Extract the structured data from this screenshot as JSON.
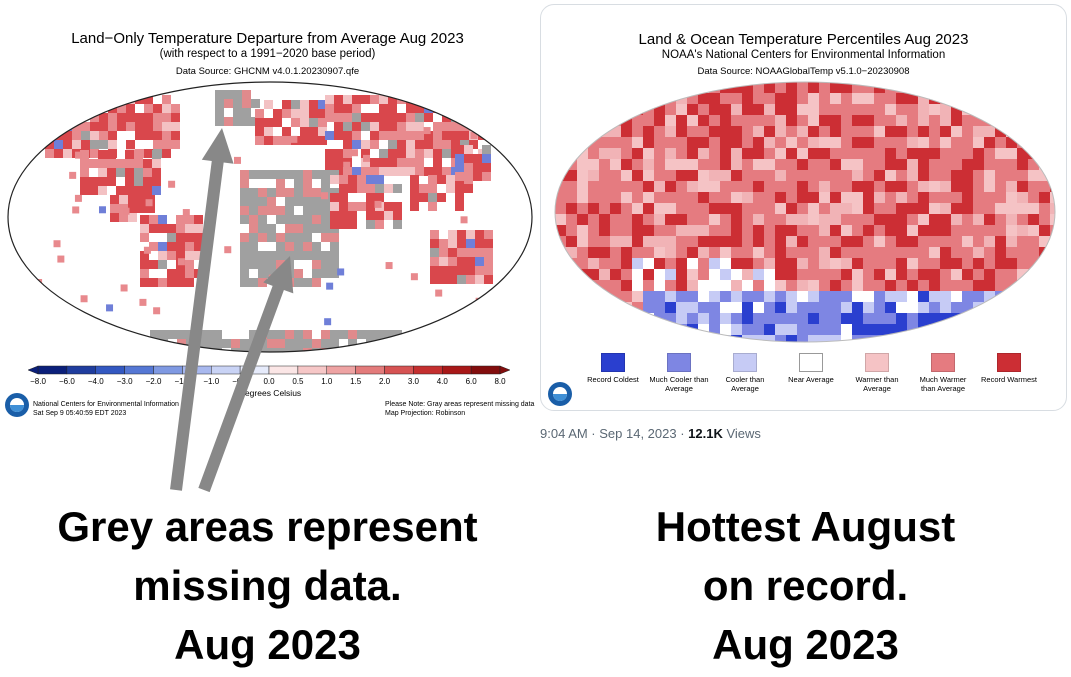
{
  "left_map": {
    "title": "Land−Only Temperature Departure from Average Aug 2023",
    "subtitle": "(with respect to a 1991−2020 base period)",
    "source": "Data Source: GHCNM v4.0.1.20230907.qfe",
    "colorbar_ticks": [
      "−8.0",
      "−6.0",
      "−4.0",
      "−3.0",
      "−2.0",
      "−1.5",
      "−1.0",
      "−0.5",
      "0.0",
      "0.5",
      "1.0",
      "1.5",
      "2.0",
      "3.0",
      "4.0",
      "6.0",
      "8.0"
    ],
    "colorbar_colors": [
      "#0b1f7a",
      "#1f3d9e",
      "#3358c1",
      "#5577d4",
      "#7f99e2",
      "#a8b8ee",
      "#c9d3f5",
      "#e6ebfb",
      "#fbe6e6",
      "#f6c7c7",
      "#eea3a3",
      "#e37b7b",
      "#d65353",
      "#c42f2f",
      "#a81818",
      "#820d0d"
    ],
    "colorbar_label": "Degrees Celsius",
    "footer_left": [
      "National Centers for Environmental Information",
      "Sat Sep  9 05:40:59 EDT 2023"
    ],
    "footer_right": [
      "Please Note: Gray areas represent missing data",
      "Map Projection: Robinson"
    ],
    "colors": {
      "missing": "#a0a0a0",
      "warm": "#d9474c",
      "cool": "#6f7fd8"
    }
  },
  "right_map": {
    "title": "Land & Ocean Temperature Percentiles Aug 2023",
    "subtitle": "NOAA's National Centers for Environmental Information",
    "source": "Data Source: NOAAGlobalTemp v5.1.0−20230908",
    "legend": [
      {
        "label": "Record Coldest",
        "color": "#2a3fcf"
      },
      {
        "label": "Much Cooler than Average",
        "color": "#7e86e3"
      },
      {
        "label": "Cooler than Average",
        "color": "#c6cbf5"
      },
      {
        "label": "Near Average",
        "color": "#ffffff"
      },
      {
        "label": "Warmer than Average",
        "color": "#f5c3c5"
      },
      {
        "label": "Much Warmer than Average",
        "color": "#e57b80"
      },
      {
        "label": "Record Warmest",
        "color": "#cc2e34"
      }
    ]
  },
  "tweet": {
    "time": "9:04 AM · Sep 14, 2023 · ",
    "views_count": "12.1K",
    "views_label": " Views"
  },
  "arrow_color": "#888888",
  "captions": {
    "left": [
      "Grey areas represent",
      "missing data.",
      "Aug 2023"
    ],
    "right": [
      "Hottest August",
      "on record.",
      "Aug 2023"
    ]
  }
}
